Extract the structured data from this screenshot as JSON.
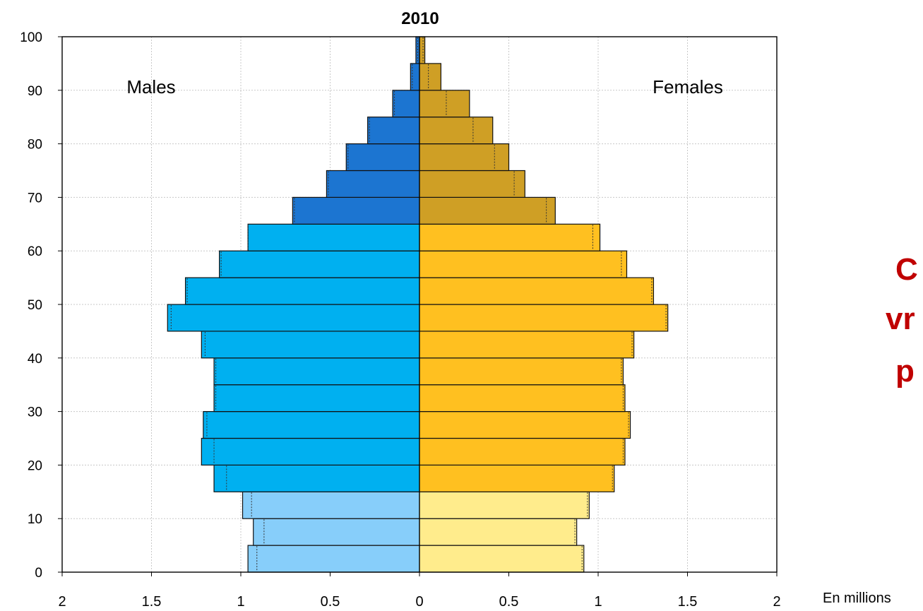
{
  "chart_data": {
    "type": "bar",
    "orientation": "horizontal-population-pyramid",
    "title": "2010",
    "left_label": "Males",
    "right_label": "Females",
    "units_note": "En millions",
    "x_ticks": [
      "2",
      "1.5",
      "1",
      "0.5",
      "0",
      "0.5",
      "1",
      "1.5",
      "2"
    ],
    "y_ticks": [
      "0",
      "10",
      "20",
      "30",
      "40",
      "50",
      "60",
      "70",
      "80",
      "90",
      "100"
    ],
    "xlim": [
      -2,
      2
    ],
    "ylim": [
      0,
      100
    ],
    "grid": true,
    "categories": [
      "0-4",
      "5-9",
      "10-14",
      "15-19",
      "20-24",
      "25-29",
      "30-34",
      "35-39",
      "40-44",
      "45-49",
      "50-54",
      "55-59",
      "60-64",
      "65-69",
      "70-74",
      "75-79",
      "80-84",
      "85-89",
      "90-94",
      "95-99"
    ],
    "series": [
      {
        "name": "Males",
        "values": [
          0.96,
          0.93,
          0.99,
          1.15,
          1.22,
          1.21,
          1.15,
          1.15,
          1.22,
          1.41,
          1.31,
          1.12,
          0.96,
          0.71,
          0.52,
          0.41,
          0.29,
          0.15,
          0.05,
          0.02
        ],
        "dotted_marks": [
          0.91,
          0.87,
          0.94,
          1.08,
          1.15,
          1.19,
          1.14,
          1.14,
          1.2,
          1.39,
          1.3,
          1.11,
          0.96,
          0.7,
          0.51,
          0.4,
          0.28,
          0.14,
          0.04,
          0.01
        ]
      },
      {
        "name": "Females",
        "values": [
          0.92,
          0.88,
          0.95,
          1.09,
          1.15,
          1.18,
          1.15,
          1.14,
          1.2,
          1.39,
          1.31,
          1.16,
          1.01,
          0.76,
          0.59,
          0.5,
          0.41,
          0.28,
          0.12,
          0.03
        ],
        "dotted_marks": [
          0.91,
          0.87,
          0.94,
          1.08,
          1.14,
          1.17,
          1.14,
          1.13,
          1.19,
          1.38,
          1.3,
          1.13,
          0.97,
          0.71,
          0.53,
          0.42,
          0.3,
          0.15,
          0.05,
          0.02
        ]
      }
    ],
    "colors": {
      "male_youth": "#87cefa",
      "male_working": "#00b0f0",
      "male_senior": "#1c75d1",
      "female_youth": "#ffec8c",
      "female_working": "#ffc020",
      "female_senior": "#cf9f25",
      "grid": "#c8c8c8"
    }
  },
  "side_text": {
    "line1": "C",
    "line2": "vr",
    "line3": "p"
  }
}
